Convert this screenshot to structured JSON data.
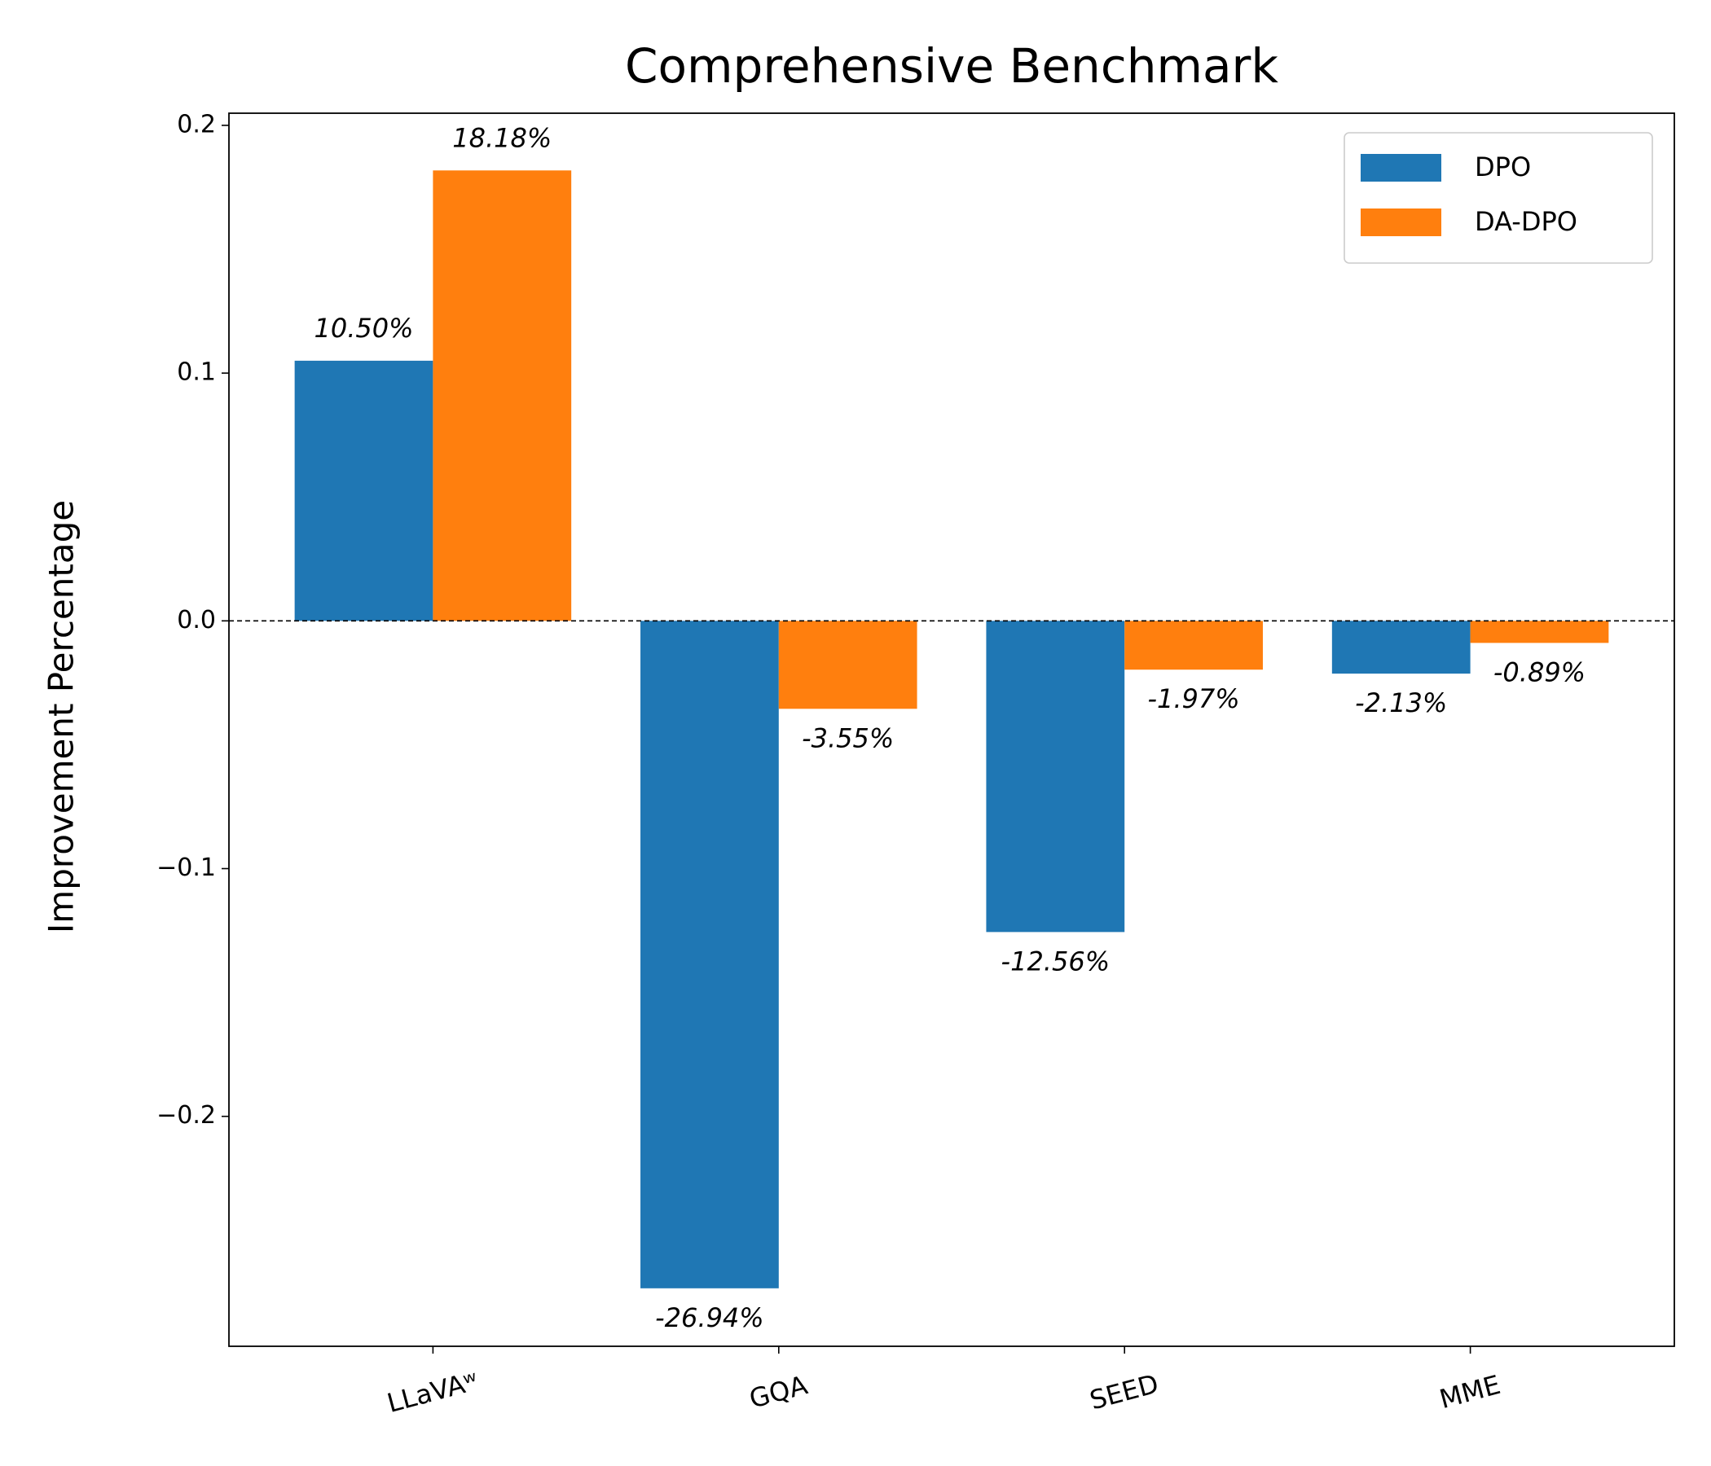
{
  "chart_data": {
    "type": "bar",
    "title": "Comprehensive Benchmark",
    "y_label": "Improvement Percentage",
    "categories": [
      "LLaVAʷ",
      "GQA",
      "SEED",
      "MME"
    ],
    "series": [
      {
        "name": "DPO",
        "color": "#1f77b4",
        "values": [
          0.105,
          -0.2694,
          -0.1256,
          -0.0213
        ],
        "value_labels": [
          "10.50%",
          "-26.94%",
          "-12.56%",
          "-2.13%"
        ]
      },
      {
        "name": "DA-DPO",
        "color": "#ff7f0e",
        "values": [
          0.1818,
          -0.0355,
          -0.0197,
          -0.0089
        ],
        "value_labels": [
          "18.18%",
          "-3.55%",
          "-1.97%",
          "-0.89%"
        ]
      }
    ],
    "ylim": [
      -0.2928,
      0.2049
    ],
    "yticks": [
      {
        "value": -0.2,
        "label": "−0.2"
      },
      {
        "value": -0.1,
        "label": "−0.1"
      },
      {
        "value": 0,
        "label": "0.0"
      },
      0.1,
      0.2
    ],
    "zero_line": true,
    "legend": "upper right"
  }
}
